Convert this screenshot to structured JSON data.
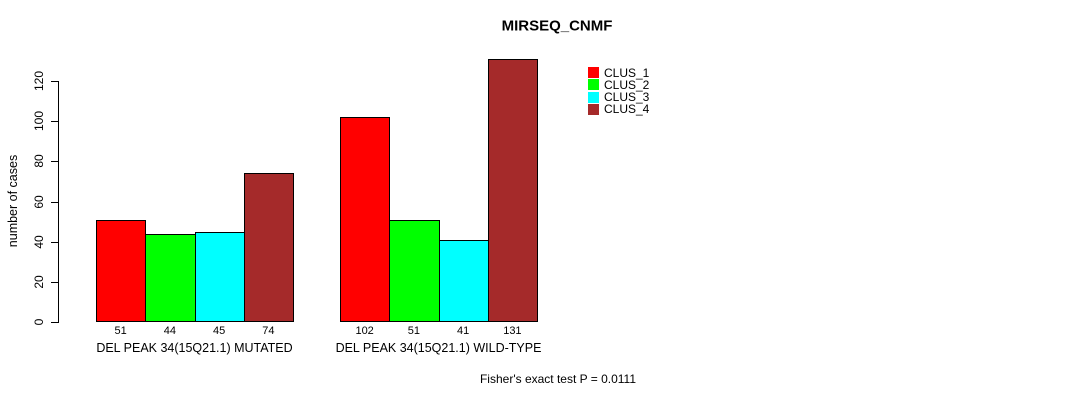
{
  "chart_data": {
    "type": "bar",
    "title": "MIRSEQ_CNMF",
    "ylabel": "number of cases",
    "xlabel": "",
    "groups": [
      "DEL PEAK 34(15Q21.1) MUTATED",
      "DEL PEAK 34(15Q21.1) WILD-TYPE"
    ],
    "series": [
      {
        "name": "CLUS_1",
        "color": "#FF0000",
        "values": [
          51,
          102
        ]
      },
      {
        "name": "CLUS_2",
        "color": "#00FF00",
        "values": [
          44,
          51
        ]
      },
      {
        "name": "CLUS_3",
        "color": "#00FFFF",
        "values": [
          45,
          41
        ]
      },
      {
        "name": "CLUS_4",
        "color": "#A52A2A",
        "values": [
          74,
          131
        ]
      }
    ],
    "bar_value_labels": [
      [
        51,
        44,
        45,
        74
      ],
      [
        102,
        51,
        41,
        131
      ]
    ],
    "yticks": [
      0,
      20,
      40,
      60,
      80,
      100,
      120
    ],
    "ylim": [
      0,
      131
    ],
    "grid": false,
    "legend_position": "right",
    "legend_entries": [
      "CLUS_1",
      "CLUS_2",
      "CLUS_3",
      "CLUS_4"
    ],
    "annotation": "Fisher's exact test P = 0.0111",
    "bar_border_color": "#000000",
    "axis_color": "#000000",
    "background_color": "#FFFFFF"
  }
}
